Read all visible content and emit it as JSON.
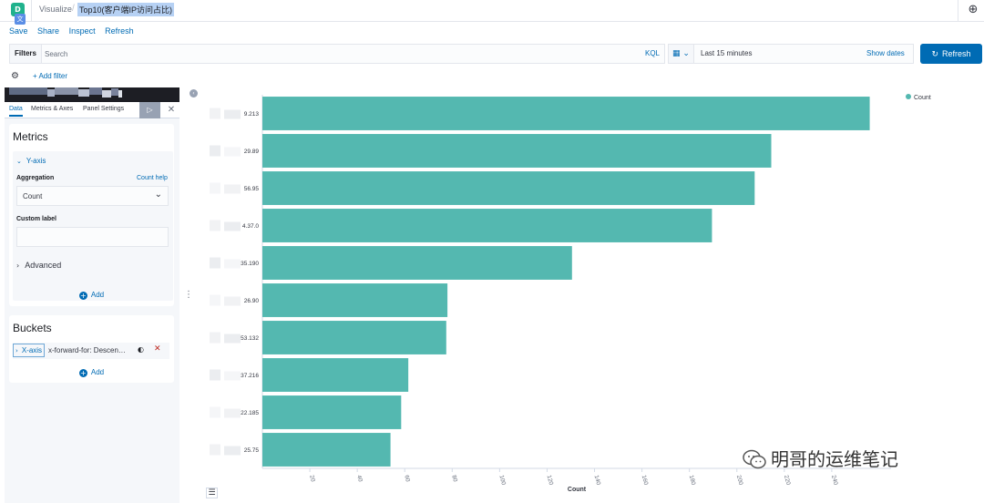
{
  "header": {
    "avatar_letter": "D",
    "breadcrumb_root": "Visualize",
    "breadcrumb_current": "Top10(客户端IP访问占比)"
  },
  "menu": {
    "save": "Save",
    "share": "Share",
    "inspect": "Inspect",
    "refresh": "Refresh"
  },
  "query": {
    "filters_label": "Filters",
    "search_placeholder": "Search",
    "language": "KQL",
    "time_range": "Last 15 minutes",
    "show_dates": "Show dates",
    "refresh_button": "Refresh",
    "add_filter": "+ Add filter"
  },
  "editor": {
    "tabs": [
      "Data",
      "Metrics & Axes",
      "Panel Settings"
    ],
    "metrics_title": "Metrics",
    "yaxis_label": "Y-axis",
    "aggregation_label": "Aggregation",
    "count_help": "Count help",
    "aggregation_value": "Count",
    "custom_label": "Custom label",
    "advanced": "Advanced",
    "add": "Add",
    "buckets_title": "Buckets",
    "bucket_xaxis": "X-axis",
    "bucket_desc": "x-forward-for: Descen…",
    "bucket_add": "Add"
  },
  "colors": {
    "bar": "#54b8b0",
    "primary": "#006bb4"
  },
  "chart_data": {
    "type": "bar",
    "orientation": "horizontal",
    "categories": [
      "9.213",
      "29.89",
      "56.95",
      "4.37.0",
      "35.190",
      "26.90",
      "53.132",
      "37.216",
      "22.185",
      "25.75"
    ],
    "series": [
      {
        "name": "Count",
        "values": [
          256,
          214.5,
          207.5,
          189.5,
          130.5,
          78,
          77.5,
          61.5,
          58.5,
          54
        ]
      }
    ],
    "xlabel": "Count",
    "xlim": [
      0,
      265
    ],
    "xticks": [
      20,
      40,
      60,
      80,
      100,
      120,
      140,
      160,
      180,
      200,
      220,
      240
    ],
    "legend": "top-right"
  },
  "watermark": "明哥的运维笔记"
}
